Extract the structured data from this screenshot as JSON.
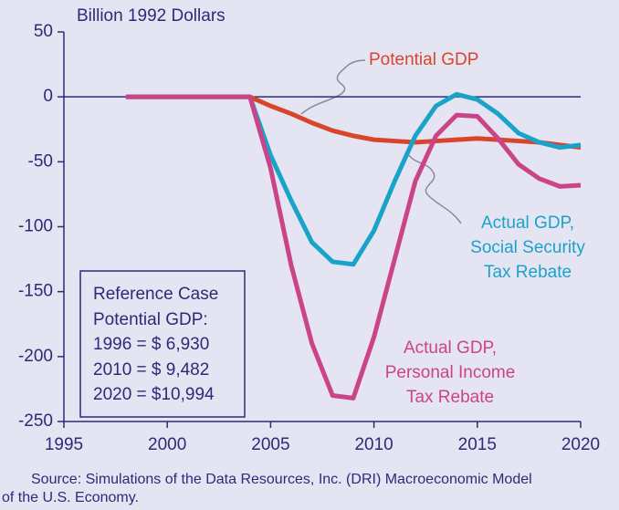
{
  "chart_data": {
    "type": "line",
    "y_axis_label": "Billion 1992 Dollars",
    "x": [
      1998,
      1999,
      2000,
      2001,
      2002,
      2003,
      2004,
      2005,
      2006,
      2007,
      2008,
      2009,
      2010,
      2011,
      2012,
      2013,
      2014,
      2015,
      2016,
      2017,
      2018,
      2019,
      2020
    ],
    "series": [
      {
        "label_lines": [
          "Potential GDP"
        ],
        "color": "#d9452b",
        "values": [
          0,
          0,
          0,
          0,
          0,
          0,
          0,
          -7,
          -13,
          -20,
          -26,
          -30,
          -33,
          -34,
          -35,
          -34,
          -33,
          -32,
          -33,
          -34,
          -35,
          -37,
          -39
        ]
      },
      {
        "label_lines": [
          "Actual GDP,",
          "Social Security",
          "Tax Rebate"
        ],
        "color": "#1aa3c8",
        "values": [
          0,
          0,
          0,
          0,
          0,
          0,
          0,
          -45,
          -80,
          -112,
          -127,
          -129,
          -103,
          -65,
          -30,
          -7,
          2,
          -2,
          -13,
          -28,
          -35,
          -39,
          -37
        ]
      },
      {
        "label_lines": [
          "Actual GDP,",
          "Personal Income",
          "Tax Rebate"
        ],
        "color": "#cc4488",
        "values": [
          0,
          0,
          0,
          0,
          0,
          0,
          0,
          -55,
          -130,
          -190,
          -230,
          -232,
          -185,
          -125,
          -65,
          -30,
          -14,
          -15,
          -32,
          -52,
          -63,
          -69,
          -68
        ]
      }
    ],
    "xlim": [
      1995,
      2020
    ],
    "xticks": [
      1995,
      2000,
      2005,
      2010,
      2015,
      2020
    ],
    "ylim": [
      -250,
      50
    ],
    "yticks": [
      50,
      0,
      -50,
      -100,
      -150,
      -200,
      -250
    ],
    "reference_box": [
      "Reference Case",
      "Potential GDP:",
      "1996 = $  6,930",
      "2010 = $  9,482",
      "2020 = $10,994"
    ],
    "source": [
      "Source: Simulations of the Data Resources, Inc. (DRI) Macroeconomic Model",
      "of the U.S. Economy."
    ]
  }
}
